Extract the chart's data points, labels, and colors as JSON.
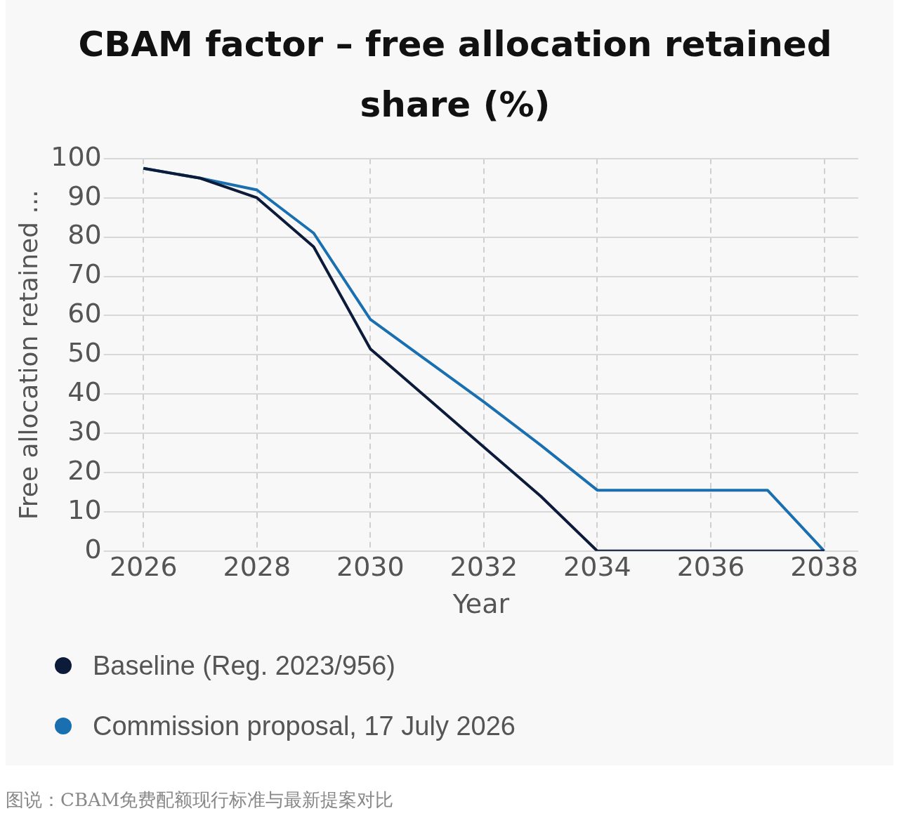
{
  "chart_data": {
    "type": "line",
    "title": "CBAM factor – free allocation retained share (%)",
    "xlabel": "Year",
    "ylabel": "Free allocation retained ...",
    "x": [
      2026,
      2027,
      2028,
      2029,
      2030,
      2031,
      2032,
      2033,
      2034,
      2035,
      2036,
      2037,
      2038
    ],
    "series": [
      {
        "name": "Baseline (Reg. 2023/956)",
        "color": "#0d1b3a",
        "values": [
          97.5,
          95,
          90,
          77.5,
          51.5,
          39,
          26.5,
          14,
          0,
          0,
          0,
          0,
          0
        ]
      },
      {
        "name": "Commission proposal, 17 July 2026",
        "color": "#1a6fb0",
        "values": [
          97.5,
          95,
          92,
          81,
          59,
          48.5,
          38,
          27,
          15.5,
          15.5,
          15.5,
          15.5,
          0
        ]
      }
    ],
    "xlim": [
      2025.3,
      2038.6
    ],
    "xticks": [
      2026,
      2028,
      2030,
      2032,
      2034,
      2036,
      2038
    ],
    "ylim": [
      0,
      100
    ],
    "yticks": [
      0,
      10,
      20,
      30,
      40,
      50,
      60,
      70,
      80,
      90,
      100
    ],
    "grid": true,
    "legend": "bottom",
    "line_style": "solid",
    "annotations": [
      "图说：CBAM免费配额现行标准与最新提案对比"
    ]
  }
}
